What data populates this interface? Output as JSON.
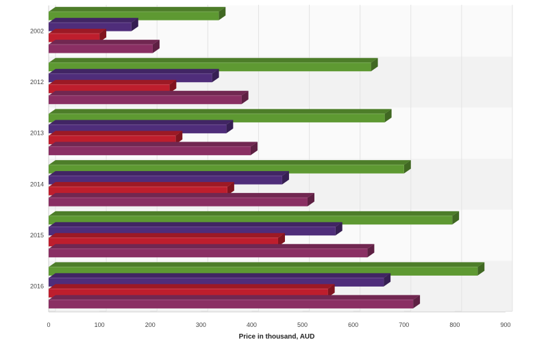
{
  "chart_data": {
    "type": "bar",
    "orientation": "horizontal",
    "three_d": true,
    "categories": [
      "2002",
      "2012",
      "2013",
      "2014",
      "2015",
      "2016"
    ],
    "series": [
      {
        "color": "#5e9932",
        "values": [
          335,
          635,
          662,
          700,
          795,
          845
        ]
      },
      {
        "color": "#4f2d7a",
        "values": [
          163,
          322,
          350,
          460,
          565,
          660
        ]
      },
      {
        "color": "#be1e2d",
        "values": [
          100,
          238,
          250,
          352,
          452,
          550
        ]
      },
      {
        "color": "#8a2f63",
        "values": [
          205,
          380,
          398,
          510,
          628,
          718
        ]
      }
    ],
    "xlabel": "Price in thousand, AUD",
    "xlim": [
      0,
      900
    ],
    "xticks": [
      0,
      100,
      200,
      300,
      400,
      500,
      600,
      700,
      800,
      900
    ],
    "grid": true,
    "band_colors": [
      "#fafafa",
      "#f2f2f2"
    ]
  }
}
